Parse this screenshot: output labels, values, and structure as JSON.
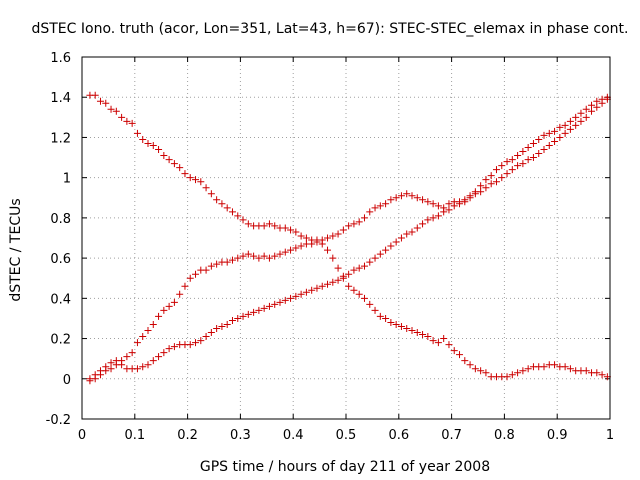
{
  "chart_data": {
    "type": "scatter",
    "title": "dSTEC Iono. truth (acor, Lon=351, Lat=43, h=67): STEC-STEC_elemax in phase cont.",
    "xlabel": "GPS time / hours of day 211 of year 2008",
    "ylabel": "dSTEC  / TECUs",
    "xlim": [
      0,
      1
    ],
    "ylim": [
      -0.2,
      1.6
    ],
    "xticks": [
      "0",
      "0.1",
      "0.2",
      "0.3",
      "0.4",
      "0.5",
      "0.6",
      "0.7",
      "0.8",
      "0.9",
      "1"
    ],
    "yticks": [
      "-0.2",
      "0",
      "0.2",
      "0.4",
      "0.6",
      "0.8",
      "1",
      "1.2",
      "1.4",
      "1.6"
    ],
    "grid": true,
    "marker": "+",
    "color": "#cc0000",
    "series": [
      {
        "x": [
          0.015,
          0.025,
          0.035,
          0.045,
          0.055,
          0.065,
          0.075,
          0.085,
          0.095,
          0.105,
          0.115,
          0.125,
          0.135,
          0.145,
          0.155,
          0.165,
          0.175,
          0.185,
          0.195,
          0.205,
          0.215,
          0.225,
          0.235,
          0.245,
          0.255,
          0.265,
          0.275,
          0.285,
          0.295,
          0.305,
          0.315,
          0.325,
          0.335,
          0.345,
          0.355,
          0.365,
          0.375,
          0.385,
          0.395,
          0.405,
          0.415,
          0.425,
          0.435,
          0.445,
          0.455,
          0.465,
          0.475,
          0.485,
          0.495,
          0.505,
          0.515,
          0.525,
          0.535,
          0.545,
          0.555,
          0.565,
          0.575,
          0.585,
          0.595,
          0.605,
          0.615,
          0.625,
          0.635,
          0.645,
          0.655,
          0.665,
          0.675,
          0.685,
          0.695,
          0.705,
          0.715,
          0.725,
          0.735,
          0.745,
          0.755,
          0.765,
          0.775,
          0.785,
          0.795,
          0.805,
          0.815,
          0.825,
          0.835,
          0.845,
          0.855,
          0.865,
          0.875,
          0.885,
          0.895,
          0.905,
          0.915,
          0.925,
          0.935,
          0.945,
          0.955,
          0.965,
          0.975,
          0.985,
          0.995
        ],
        "y": [
          1.41,
          1.41,
          1.38,
          1.37,
          1.34,
          1.33,
          1.3,
          1.28,
          1.27,
          1.22,
          1.19,
          1.17,
          1.16,
          1.14,
          1.11,
          1.09,
          1.07,
          1.05,
          1.02,
          1.0,
          0.99,
          0.98,
          0.95,
          0.92,
          0.89,
          0.87,
          0.85,
          0.83,
          0.81,
          0.79,
          0.77,
          0.76,
          0.76,
          0.76,
          0.77,
          0.76,
          0.75,
          0.75,
          0.74,
          0.73,
          0.71,
          0.7,
          0.69,
          0.69,
          0.67,
          0.64,
          0.6,
          0.55,
          0.51,
          0.46,
          0.44,
          0.42,
          0.4,
          0.37,
          0.34,
          0.31,
          0.3,
          0.28,
          0.27,
          0.26,
          0.25,
          0.24,
          0.23,
          0.22,
          0.21,
          0.19,
          0.18,
          0.2,
          0.17,
          0.14,
          0.12,
          0.09,
          0.07,
          0.05,
          0.04,
          0.03,
          0.01,
          0.01,
          0.01,
          0.01,
          0.02,
          0.03,
          0.04,
          0.05,
          0.06,
          0.06,
          0.06,
          0.07,
          0.07,
          0.06,
          0.06,
          0.05,
          0.04,
          0.04,
          0.04,
          0.03,
          0.03,
          0.02,
          0.01
        ]
      },
      {
        "x": [
          0.015,
          0.025,
          0.035,
          0.045,
          0.055,
          0.065,
          0.075,
          0.085,
          0.095,
          0.105,
          0.115,
          0.125,
          0.135,
          0.145,
          0.155,
          0.165,
          0.175,
          0.185,
          0.195,
          0.205,
          0.215,
          0.225,
          0.235,
          0.245,
          0.255,
          0.265,
          0.275,
          0.285,
          0.295,
          0.305,
          0.315,
          0.325,
          0.335,
          0.345,
          0.355,
          0.365,
          0.375,
          0.385,
          0.395,
          0.405,
          0.415,
          0.425,
          0.435,
          0.445,
          0.455,
          0.465,
          0.475,
          0.485,
          0.495,
          0.505,
          0.515,
          0.525,
          0.535,
          0.545,
          0.555,
          0.565,
          0.575,
          0.585,
          0.595,
          0.605,
          0.615,
          0.625,
          0.635,
          0.645,
          0.655,
          0.665,
          0.675,
          0.685,
          0.695,
          0.705,
          0.715,
          0.725,
          0.735,
          0.745,
          0.755,
          0.765,
          0.775,
          0.785,
          0.795,
          0.805,
          0.815,
          0.825,
          0.835,
          0.845,
          0.855,
          0.865,
          0.875,
          0.885,
          0.895,
          0.905,
          0.915,
          0.925,
          0.935,
          0.945,
          0.955,
          0.965,
          0.975,
          0.985,
          0.995
        ],
        "y": [
          -0.01,
          0.0,
          0.02,
          0.04,
          0.05,
          0.07,
          0.09,
          0.11,
          0.13,
          0.18,
          0.21,
          0.24,
          0.27,
          0.31,
          0.34,
          0.36,
          0.38,
          0.42,
          0.46,
          0.5,
          0.52,
          0.54,
          0.54,
          0.56,
          0.57,
          0.58,
          0.58,
          0.59,
          0.6,
          0.61,
          0.62,
          0.61,
          0.6,
          0.61,
          0.6,
          0.61,
          0.62,
          0.63,
          0.64,
          0.65,
          0.66,
          0.67,
          0.67,
          0.68,
          0.69,
          0.7,
          0.71,
          0.72,
          0.74,
          0.76,
          0.77,
          0.78,
          0.8,
          0.83,
          0.85,
          0.86,
          0.87,
          0.89,
          0.9,
          0.91,
          0.92,
          0.91,
          0.9,
          0.89,
          0.88,
          0.87,
          0.86,
          0.85,
          0.87,
          0.88,
          0.88,
          0.89,
          0.91,
          0.93,
          0.96,
          0.99,
          1.01,
          1.04,
          1.06,
          1.08,
          1.09,
          1.11,
          1.13,
          1.15,
          1.17,
          1.19,
          1.21,
          1.22,
          1.23,
          1.25,
          1.26,
          1.28,
          1.3,
          1.32,
          1.34,
          1.36,
          1.38,
          1.39,
          1.4
        ]
      },
      {
        "x": [
          0.015,
          0.025,
          0.035,
          0.045,
          0.055,
          0.065,
          0.075,
          0.085,
          0.095,
          0.105,
          0.115,
          0.125,
          0.135,
          0.145,
          0.155,
          0.165,
          0.175,
          0.185,
          0.195,
          0.205,
          0.215,
          0.225,
          0.235,
          0.245,
          0.255,
          0.265,
          0.275,
          0.285,
          0.295,
          0.305,
          0.315,
          0.325,
          0.335,
          0.345,
          0.355,
          0.365,
          0.375,
          0.385,
          0.395,
          0.405,
          0.415,
          0.425,
          0.435,
          0.445,
          0.455,
          0.465,
          0.475,
          0.485,
          0.495,
          0.505,
          0.515,
          0.525,
          0.535,
          0.545,
          0.555,
          0.565,
          0.575,
          0.585,
          0.595,
          0.605,
          0.615,
          0.625,
          0.635,
          0.645,
          0.655,
          0.665,
          0.675,
          0.685,
          0.695,
          0.705,
          0.715,
          0.725,
          0.735,
          0.745,
          0.755,
          0.765,
          0.775,
          0.785,
          0.795,
          0.805,
          0.815,
          0.825,
          0.835,
          0.845,
          0.855,
          0.865,
          0.875,
          0.885,
          0.895,
          0.905,
          0.915,
          0.925,
          0.935,
          0.945,
          0.955,
          0.965,
          0.975,
          0.985,
          0.995
        ],
        "y": [
          0.0,
          0.02,
          0.04,
          0.06,
          0.08,
          0.09,
          0.07,
          0.05,
          0.05,
          0.05,
          0.06,
          0.07,
          0.09,
          0.11,
          0.13,
          0.15,
          0.16,
          0.17,
          0.17,
          0.17,
          0.18,
          0.19,
          0.21,
          0.23,
          0.25,
          0.26,
          0.27,
          0.29,
          0.3,
          0.31,
          0.32,
          0.33,
          0.34,
          0.35,
          0.36,
          0.37,
          0.38,
          0.39,
          0.4,
          0.41,
          0.42,
          0.43,
          0.44,
          0.45,
          0.46,
          0.47,
          0.48,
          0.49,
          0.5,
          0.52,
          0.54,
          0.55,
          0.56,
          0.58,
          0.6,
          0.62,
          0.64,
          0.66,
          0.68,
          0.7,
          0.72,
          0.73,
          0.75,
          0.77,
          0.79,
          0.8,
          0.81,
          0.83,
          0.84,
          0.86,
          0.87,
          0.88,
          0.9,
          0.92,
          0.93,
          0.95,
          0.97,
          0.98,
          1.0,
          1.02,
          1.04,
          1.06,
          1.07,
          1.09,
          1.1,
          1.12,
          1.14,
          1.16,
          1.18,
          1.2,
          1.22,
          1.24,
          1.26,
          1.28,
          1.3,
          1.33,
          1.35,
          1.37,
          1.39
        ]
      }
    ]
  }
}
